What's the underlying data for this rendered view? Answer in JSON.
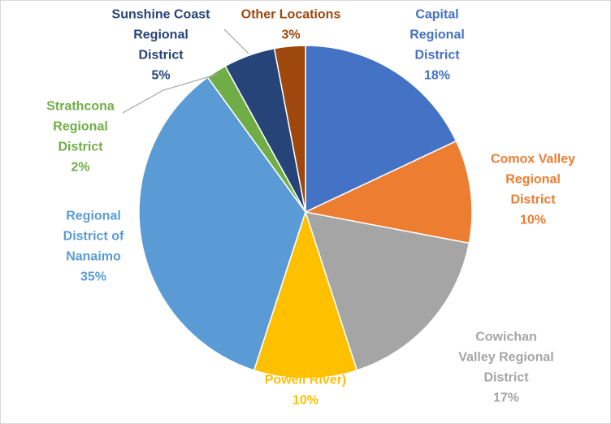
{
  "chart_data": {
    "type": "pie",
    "title": "",
    "slices": [
      {
        "label_lines": [
          "Capital",
          "Regional",
          "District"
        ],
        "pct_label": "18%",
        "value": 18,
        "color": "#4472C4"
      },
      {
        "label_lines": [
          "Comox Valley",
          "Regional",
          "District"
        ],
        "pct_label": "10%",
        "value": 10,
        "color": "#ED7D31"
      },
      {
        "label_lines": [
          "Cowichan",
          "Valley Regional",
          "District"
        ],
        "pct_label": "17%",
        "value": 17,
        "color": "#A5A5A5"
      },
      {
        "label_lines": [
          "Powell River)"
        ],
        "pct_label": "10%",
        "value": 10,
        "color": "#FFC000"
      },
      {
        "label_lines": [
          "Regional",
          "District of",
          "Nanaimo"
        ],
        "pct_label": "35%",
        "value": 35,
        "color": "#5B9BD5"
      },
      {
        "label_lines": [
          "Strathcona",
          "Regional",
          "District"
        ],
        "pct_label": "2%",
        "value": 2,
        "color": "#70AD47"
      },
      {
        "label_lines": [
          "Sunshine Coast",
          "Regional",
          "District"
        ],
        "pct_label": "5%",
        "value": 5,
        "color": "#264478"
      },
      {
        "label_lines": [
          "Other Locations"
        ],
        "pct_label": "3%",
        "value": 3,
        "color": "#9E480E"
      }
    ]
  }
}
